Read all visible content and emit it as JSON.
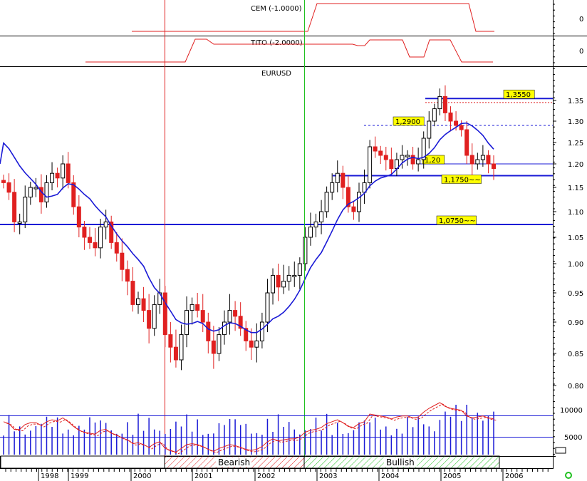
{
  "colors": {
    "up": "#ffffff",
    "down": "#e02020",
    "ma": "#1a1ad6",
    "level": "#1a1ad6",
    "indicator": "#e02020",
    "bearish_line": "#e02020",
    "bullish_line": "#20c020",
    "volume": "#1a1ad6",
    "tag_bg": "#ffff00"
  },
  "panels": {
    "cem": {
      "label": "CEM (-1.0000)",
      "axis_value": "0"
    },
    "tito": {
      "label": "TITO (-2.0000)",
      "axis_value": "0"
    },
    "price": {
      "label": "EURUSD"
    }
  },
  "periods": {
    "bearish": "Bearish",
    "bullish": "Bullish"
  },
  "chart_data": {
    "type": "candlestick",
    "title": "EURUSD",
    "x_labels": [
      "1998",
      "1999",
      "2000",
      "2001",
      "2002",
      "2003",
      "2004",
      "2005",
      "2006"
    ],
    "y_ticks": [
      "1.35",
      "1.30",
      "1.25",
      "1.20",
      "1.15",
      "1.10",
      "1.05",
      "1.00",
      "0.95",
      "0.90",
      "0.85",
      "0.80"
    ],
    "ylim": [
      0.78,
      1.39
    ],
    "volume_ticks": [
      "10000",
      "5000"
    ],
    "levels": [
      {
        "label": "1,3550",
        "value": 1.355
      },
      {
        "label": "1,2900",
        "value": 1.29
      },
      {
        "label": "1,20",
        "value": 1.2
      },
      {
        "label": "1,1750~~",
        "value": 1.175
      },
      {
        "label": "1,0750~~",
        "value": 1.075
      }
    ],
    "vertical_markers": [
      {
        "name": "Bearish",
        "date": "2000.4"
      },
      {
        "name": "Bullish",
        "date": "2002.75"
      }
    ],
    "closes": [
      1.16,
      1.14,
      1.08,
      1.08,
      1.13,
      1.15,
      1.15,
      1.12,
      1.16,
      1.18,
      1.17,
      1.2,
      1.16,
      1.11,
      1.07,
      1.05,
      1.04,
      1.03,
      1.07,
      1.08,
      1.04,
      1.02,
      0.99,
      0.97,
      0.93,
      0.94,
      0.92,
      0.89,
      0.93,
      0.95,
      0.88,
      0.86,
      0.84,
      0.88,
      0.92,
      0.93,
      0.92,
      0.9,
      0.87,
      0.85,
      0.88,
      0.9,
      0.92,
      0.91,
      0.89,
      0.87,
      0.86,
      0.87,
      0.9,
      0.95,
      0.98,
      0.96,
      0.97,
      0.98,
      0.98,
      1.0,
      1.05,
      1.07,
      1.08,
      1.1,
      1.14,
      1.16,
      1.18,
      1.15,
      1.11,
      1.1,
      1.14,
      1.16,
      1.24,
      1.23,
      1.22,
      1.21,
      1.19,
      1.21,
      1.22,
      1.22,
      1.2,
      1.21,
      1.26,
      1.3,
      1.33,
      1.36,
      1.32,
      1.3,
      1.29,
      1.28,
      1.22,
      1.2,
      1.21,
      1.22,
      1.2,
      1.19
    ]
  }
}
